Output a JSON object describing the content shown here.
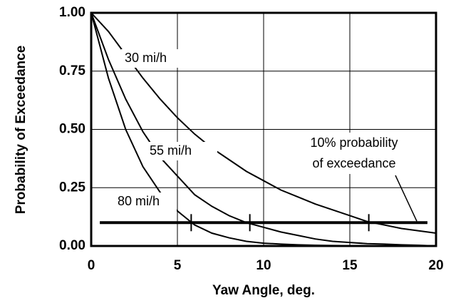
{
  "chart_data": {
    "type": "line",
    "xlabel": "Yaw Angle, deg.",
    "ylabel": "Probability of Exceedance",
    "x": [
      0,
      1,
      2,
      3,
      4,
      5,
      6,
      7,
      8,
      9,
      10,
      11,
      12,
      13,
      14,
      15,
      16,
      17,
      18,
      19,
      20
    ],
    "series": [
      {
        "name": "30 mi/h",
        "color": "#000000",
        "values": [
          1.0,
          0.92,
          0.82,
          0.72,
          0.63,
          0.55,
          0.48,
          0.42,
          0.37,
          0.32,
          0.28,
          0.24,
          0.21,
          0.18,
          0.155,
          0.13,
          0.105,
          0.09,
          0.075,
          0.065,
          0.055
        ]
      },
      {
        "name": "55 mi/h",
        "color": "#000000",
        "values": [
          1.0,
          0.8,
          0.63,
          0.49,
          0.38,
          0.3,
          0.22,
          0.17,
          0.13,
          0.1,
          0.08,
          0.06,
          0.045,
          0.03,
          0.02,
          0.015,
          0.01,
          0.008,
          0.005,
          0.003,
          0.0
        ]
      },
      {
        "name": "80 mi/h",
        "color": "#000000",
        "values": [
          1.0,
          0.72,
          0.5,
          0.34,
          0.23,
          0.15,
          0.09,
          0.055,
          0.035,
          0.02,
          0.012,
          0.008,
          0.005,
          0.003,
          0.002,
          0.001,
          0,
          0,
          0,
          0,
          0
        ]
      }
    ],
    "threshold": {
      "label": [
        "10% probability",
        "of exceedance"
      ],
      "value": 0.1,
      "xstart": 0.5,
      "xend": 19.5,
      "crossings": [
        5.8,
        9.2,
        16.1
      ]
    },
    "xlim": [
      0,
      20
    ],
    "xticks": [
      0,
      5,
      10,
      15,
      20
    ],
    "ylim": [
      0,
      1
    ],
    "yticks": [
      {
        "value": 0,
        "label": "0.00"
      },
      {
        "value": 0.25,
        "label": "0.25"
      },
      {
        "value": 0.5,
        "label": "0.50"
      },
      {
        "value": 0.75,
        "label": "0.75"
      },
      {
        "value": 1,
        "label": "1.00"
      }
    ],
    "grid": true
  }
}
